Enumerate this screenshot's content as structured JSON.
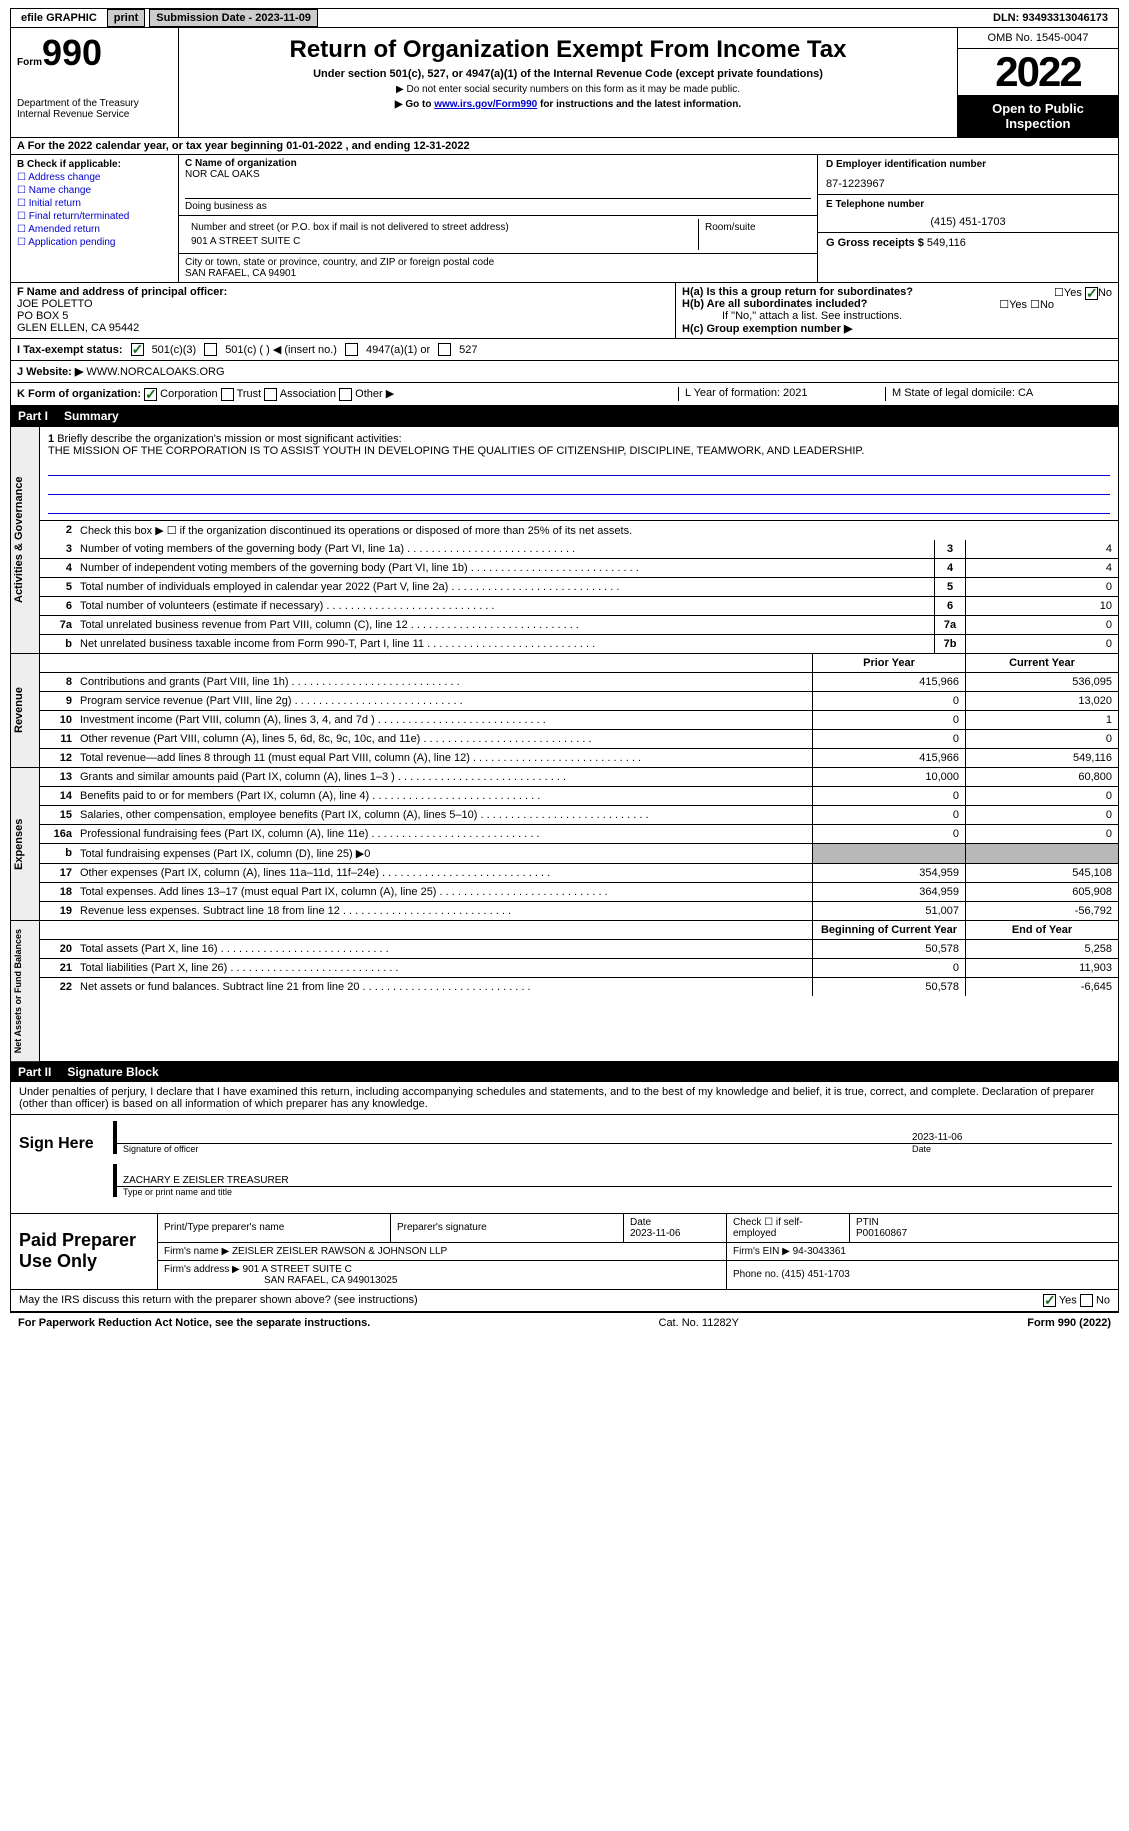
{
  "topbar": {
    "efile": "efile GRAPHIC",
    "print": "print",
    "submission": "Submission Date - 2023-11-09",
    "dln": "DLN: 93493313046173"
  },
  "header": {
    "form": "Form",
    "formnum": "990",
    "dept": "Department of the Treasury\nInternal Revenue Service",
    "title": "Return of Organization Exempt From Income Tax",
    "subtitle": "Under section 501(c), 527, or 4947(a)(1) of the Internal Revenue Code (except private foundations)",
    "note1": "▶ Do not enter social security numbers on this form as it may be made public.",
    "note2_pre": "▶ Go to ",
    "note2_link": "www.irs.gov/Form990",
    "note2_post": " for instructions and the latest information.",
    "omb": "OMB No. 1545-0047",
    "year": "2022",
    "open": "Open to Public Inspection"
  },
  "sectionA": {
    "text": "A For the 2022 calendar year, or tax year beginning 01-01-2022    , and ending 12-31-2022"
  },
  "colB": {
    "label": "B Check if applicable:",
    "opts": [
      "Address change",
      "Name change",
      "Initial return",
      "Final return/terminated",
      "Amended return",
      "Application pending"
    ]
  },
  "colC": {
    "name_label": "C Name of organization",
    "name": "NOR CAL OAKS",
    "dba_label": "Doing business as",
    "street_label": "Number and street (or P.O. box if mail is not delivered to street address)",
    "room_label": "Room/suite",
    "street": "901 A STREET SUITE C",
    "city_label": "City or town, state or province, country, and ZIP or foreign postal code",
    "city": "SAN RAFAEL, CA  94901"
  },
  "colDE": {
    "d_label": "D Employer identification number",
    "d_val": "87-1223967",
    "e_label": "E Telephone number",
    "e_val": "(415) 451-1703",
    "g_label": "G Gross receipts $",
    "g_val": "549,116"
  },
  "rowF": {
    "label": "F Name and address of principal officer:",
    "name": "JOE POLETTO",
    "addr1": "PO BOX 5",
    "addr2": "GLEN ELLEN, CA  95442",
    "ha": "H(a)  Is this a group return for subordinates?",
    "ha_yes": "Yes",
    "ha_no": "No",
    "hb": "H(b)  Are all subordinates included?",
    "hb_yes": "Yes",
    "hb_no": "No",
    "hb_note": "If \"No,\" attach a list. See instructions.",
    "hc": "H(c)  Group exemption number ▶"
  },
  "rowI": {
    "label": "I   Tax-exempt status:",
    "o1": "501(c)(3)",
    "o2": "501(c) (  ) ◀ (insert no.)",
    "o3": "4947(a)(1) or",
    "o4": "527"
  },
  "rowJ": {
    "label": "J   Website: ▶",
    "val": "WWW.NORCALOAKS.ORG"
  },
  "rowK": {
    "label": "K Form of organization:",
    "o1": "Corporation",
    "o2": "Trust",
    "o3": "Association",
    "o4": "Other ▶",
    "l": "L Year of formation: 2021",
    "m": "M State of legal domicile: CA"
  },
  "part1": {
    "title": "Summary",
    "partnum": "Part I",
    "q1": "Briefly describe the organization's mission or most significant activities:",
    "mission": "THE MISSION OF THE CORPORATION IS TO ASSIST YOUTH IN DEVELOPING THE QUALITIES OF CITIZENSHIP, DISCIPLINE, TEAMWORK, AND LEADERSHIP.",
    "q2": "Check this box ▶ ☐ if the organization discontinued its operations or disposed of more than 25% of its net assets.",
    "rows": [
      {
        "n": "3",
        "t": "Number of voting members of the governing body (Part VI, line 1a)",
        "box": "3",
        "v": "4"
      },
      {
        "n": "4",
        "t": "Number of independent voting members of the governing body (Part VI, line 1b)",
        "box": "4",
        "v": "4"
      },
      {
        "n": "5",
        "t": "Total number of individuals employed in calendar year 2022 (Part V, line 2a)",
        "box": "5",
        "v": "0"
      },
      {
        "n": "6",
        "t": "Total number of volunteers (estimate if necessary)",
        "box": "6",
        "v": "10"
      },
      {
        "n": "7a",
        "t": "Total unrelated business revenue from Part VIII, column (C), line 12",
        "box": "7a",
        "v": "0"
      },
      {
        "n": "b",
        "t": "Net unrelated business taxable income from Form 990-T, Part I, line 11",
        "box": "7b",
        "v": "0"
      }
    ],
    "prior_hdr": "Prior Year",
    "current_hdr": "Current Year",
    "rev_rows": [
      {
        "n": "8",
        "t": "Contributions and grants (Part VIII, line 1h)",
        "p": "415,966",
        "c": "536,095"
      },
      {
        "n": "9",
        "t": "Program service revenue (Part VIII, line 2g)",
        "p": "0",
        "c": "13,020"
      },
      {
        "n": "10",
        "t": "Investment income (Part VIII, column (A), lines 3, 4, and 7d )",
        "p": "0",
        "c": "1"
      },
      {
        "n": "11",
        "t": "Other revenue (Part VIII, column (A), lines 5, 6d, 8c, 9c, 10c, and 11e)",
        "p": "0",
        "c": "0"
      },
      {
        "n": "12",
        "t": "Total revenue—add lines 8 through 11 (must equal Part VIII, column (A), line 12)",
        "p": "415,966",
        "c": "549,116"
      }
    ],
    "exp_rows": [
      {
        "n": "13",
        "t": "Grants and similar amounts paid (Part IX, column (A), lines 1–3 )",
        "p": "10,000",
        "c": "60,800"
      },
      {
        "n": "14",
        "t": "Benefits paid to or for members (Part IX, column (A), line 4)",
        "p": "0",
        "c": "0"
      },
      {
        "n": "15",
        "t": "Salaries, other compensation, employee benefits (Part IX, column (A), lines 5–10)",
        "p": "0",
        "c": "0"
      },
      {
        "n": "16a",
        "t": "Professional fundraising fees (Part IX, column (A), line 11e)",
        "p": "0",
        "c": "0"
      },
      {
        "n": "b",
        "t": "Total fundraising expenses (Part IX, column (D), line 25) ▶0",
        "shaded": true
      },
      {
        "n": "17",
        "t": "Other expenses (Part IX, column (A), lines 11a–11d, 11f–24e)",
        "p": "354,959",
        "c": "545,108"
      },
      {
        "n": "18",
        "t": "Total expenses. Add lines 13–17 (must equal Part IX, column (A), line 25)",
        "p": "364,959",
        "c": "605,908"
      },
      {
        "n": "19",
        "t": "Revenue less expenses. Subtract line 18 from line 12",
        "p": "51,007",
        "c": "-56,792"
      }
    ],
    "na_hdr1": "Beginning of Current Year",
    "na_hdr2": "End of Year",
    "na_rows": [
      {
        "n": "20",
        "t": "Total assets (Part X, line 16)",
        "p": "50,578",
        "c": "5,258"
      },
      {
        "n": "21",
        "t": "Total liabilities (Part X, line 26)",
        "p": "0",
        "c": "11,903"
      },
      {
        "n": "22",
        "t": "Net assets or fund balances. Subtract line 21 from line 20",
        "p": "50,578",
        "c": "-6,645"
      }
    ],
    "vtab_gov": "Activities & Governance",
    "vtab_rev": "Revenue",
    "vtab_exp": "Expenses",
    "vtab_na": "Net Assets or Fund Balances"
  },
  "part2": {
    "title": "Signature Block",
    "partnum": "Part II",
    "declaration": "Under penalties of perjury, I declare that I have examined this return, including accompanying schedules and statements, and to the best of my knowledge and belief, it is true, correct, and complete. Declaration of preparer (other than officer) is based on all information of which preparer has any knowledge.",
    "sign_here": "Sign Here",
    "sig_officer": "Signature of officer",
    "sig_date": "Date",
    "sig_date_val": "2023-11-06",
    "sig_name": "ZACHARY E ZEISLER  TREASURER",
    "sig_name_lbl": "Type or print name and title"
  },
  "paid": {
    "label": "Paid Preparer Use Only",
    "r1_c1": "Print/Type preparer's name",
    "r1_c2": "Preparer's signature",
    "r1_c3_lbl": "Date",
    "r1_c3": "2023-11-06",
    "r1_c4": "Check ☐ if self-employed",
    "r1_c5_lbl": "PTIN",
    "r1_c5": "P00160867",
    "r2_lbl": "Firm's name    ▶",
    "r2_val": "ZEISLER ZEISLER RAWSON & JOHNSON LLP",
    "r2_ein_lbl": "Firm's EIN ▶",
    "r2_ein": "94-3043361",
    "r3_lbl": "Firm's address ▶",
    "r3_val": "901 A STREET SUITE C",
    "r3_val2": "SAN RAFAEL, CA  949013025",
    "r3_phone_lbl": "Phone no.",
    "r3_phone": "(415) 451-1703"
  },
  "bottom": {
    "discuss": "May the IRS discuss this return with the preparer shown above? (see instructions)",
    "yes": "Yes",
    "no": "No",
    "paperwork": "For Paperwork Reduction Act Notice, see the separate instructions.",
    "cat": "Cat. No. 11282Y",
    "form": "Form 990 (2022)"
  }
}
